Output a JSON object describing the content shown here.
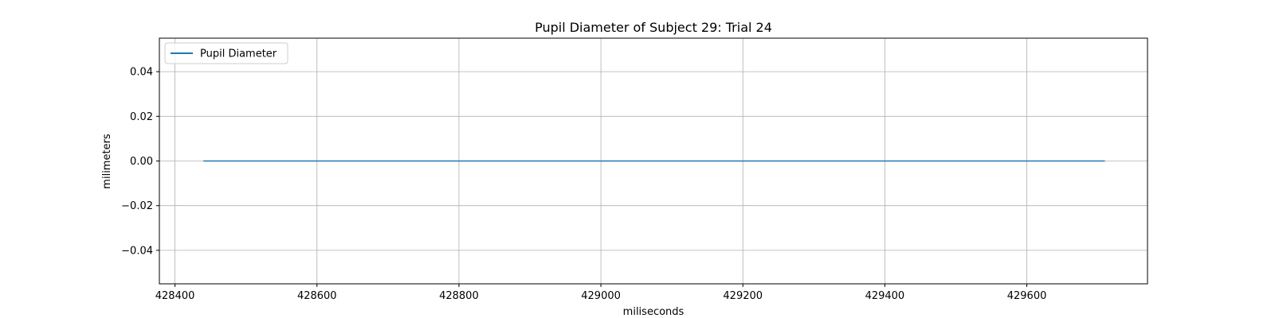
{
  "chart_data": {
    "type": "line",
    "title": "Pupil Diameter of Subject 29: Trial 24",
    "xlabel": "miliseconds",
    "ylabel": "milimeters",
    "xlim": [
      428378,
      429770
    ],
    "ylim": [
      -0.055,
      0.055
    ],
    "x_ticks": [
      428400,
      428600,
      428800,
      429000,
      429200,
      429400,
      429600
    ],
    "x_tick_labels": [
      "428400",
      "428600",
      "428800",
      "429000",
      "429200",
      "429400",
      "429600"
    ],
    "y_ticks": [
      0.04,
      0.02,
      0.0,
      -0.02,
      -0.04
    ],
    "y_tick_labels": [
      "0.04",
      "0.02",
      "0.00",
      "−0.02",
      "−0.04"
    ],
    "grid": true,
    "legend_position": "upper-left",
    "series": [
      {
        "name": "Pupil Diameter",
        "color": "#1f77b4",
        "x": [
          428440,
          429710
        ],
        "y": [
          0.0,
          0.0
        ]
      }
    ]
  }
}
